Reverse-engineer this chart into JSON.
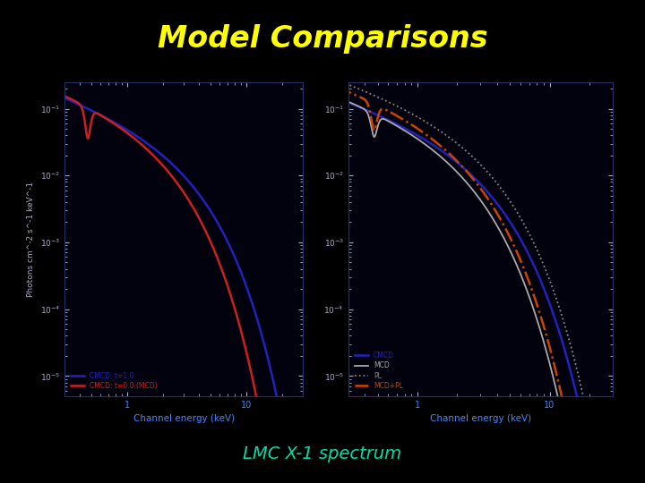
{
  "title": "Model Comparisons",
  "subtitle": "LMC X-1 spectrum",
  "title_color": "#ffff00",
  "subtitle_color": "#00ddaa",
  "bg_color": "#000000",
  "plot_bg_color": "#02020f",
  "xlabel": "Channel energy (keV)",
  "ylabel": "Photons cm^-2 s^-1 keV^-1",
  "left_legend": [
    {
      "label": "CMCD: t=1.0",
      "color": "#2222bb"
    },
    {
      "label": "CMCD: t=0.0 (MCD)",
      "color": "#cc2020"
    }
  ],
  "right_legend": [
    {
      "label": "CMCD",
      "color": "#2222bb"
    },
    {
      "label": "MCD",
      "color": "#aaaaaa"
    },
    {
      "label": "PL",
      "color": "#888888"
    },
    {
      "label": "MCD+PL",
      "color": "#cc4400"
    }
  ]
}
